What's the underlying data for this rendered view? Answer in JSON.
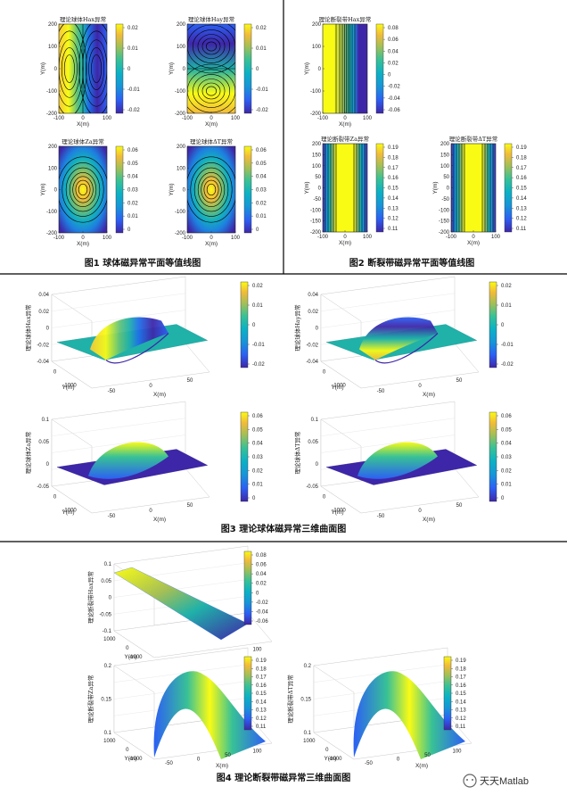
{
  "captions": {
    "fig1": "图1 球体磁异常平面等值线图",
    "fig2": "图2 断裂带磁异常平面等值线图",
    "fig3": "图3 理论球体磁异常三维曲面图",
    "fig4": "图4 理论断裂带磁异常三维曲面图"
  },
  "watermark": "天天Matlab",
  "colors": {
    "low": "#3e26a8",
    "mid": "#20b1a9",
    "high": "#f9fb15",
    "divider": "#000000"
  },
  "chart_data": [
    {
      "id": "f1a",
      "type": "heatmap",
      "title": "理论球体Hax异常",
      "xlabel": "X(m)",
      "ylabel": "Y(m)",
      "xlim": [
        -100,
        100
      ],
      "ylim": [
        -200,
        200
      ],
      "xticks": [
        "-100",
        "0",
        "100"
      ],
      "yticks": [
        "200",
        "100",
        "0",
        "-100",
        "-200"
      ],
      "colorbar_ticks": [
        "0.02",
        "0.01",
        "0",
        "-0.01",
        "-0.02"
      ],
      "clim": [
        -0.025,
        0.025
      ]
    },
    {
      "id": "f1b",
      "type": "heatmap",
      "title": "理论球体Hay异常",
      "xlabel": "X(m)",
      "ylabel": "Y(m)",
      "xlim": [
        -100,
        100
      ],
      "ylim": [
        -200,
        200
      ],
      "xticks": [
        "-100",
        "0",
        "100"
      ],
      "yticks": [
        "200",
        "100",
        "0",
        "-100",
        "-200"
      ],
      "colorbar_ticks": [
        "0.02",
        "0.01",
        "0",
        "-0.01",
        "-0.02"
      ],
      "clim": [
        -0.025,
        0.025
      ]
    },
    {
      "id": "f1c",
      "type": "heatmap",
      "title": "理论球体Za异常",
      "xlabel": "X(m)",
      "ylabel": "Y(m)",
      "xlim": [
        -100,
        100
      ],
      "ylim": [
        -200,
        200
      ],
      "xticks": [
        "-100",
        "0",
        "100"
      ],
      "yticks": [
        "200",
        "100",
        "0",
        "-100",
        "-200"
      ],
      "colorbar_ticks": [
        "0.06",
        "0.05",
        "0.04",
        "0.03",
        "0.02",
        "0.01",
        "0"
      ],
      "clim": [
        0,
        0.065
      ]
    },
    {
      "id": "f1d",
      "type": "heatmap",
      "title": "理论球体ΔT异常",
      "xlabel": "X(m)",
      "ylabel": "Y(m)",
      "xlim": [
        -100,
        100
      ],
      "ylim": [
        -200,
        200
      ],
      "xticks": [
        "-100",
        "0",
        "100"
      ],
      "yticks": [
        "200",
        "100",
        "0",
        "-100",
        "-200"
      ],
      "colorbar_ticks": [
        "0.06",
        "0.05",
        "0.04",
        "0.03",
        "0.02",
        "0.01",
        "0"
      ],
      "clim": [
        0,
        0.065
      ]
    },
    {
      "id": "f2a",
      "type": "heatmap",
      "title": "理论断裂带Hax异常",
      "xlabel": "X(m)",
      "ylabel": "Y(m)",
      "xlim": [
        -100,
        100
      ],
      "ylim": [
        -200,
        200
      ],
      "xticks": [
        "-100",
        "0",
        "100"
      ],
      "yticks": [
        "200",
        "100",
        "0",
        "-100",
        "-200"
      ],
      "colorbar_ticks": [
        "0.08",
        "0.06",
        "0.04",
        "0.02",
        "0",
        "-0.02",
        "-0.04",
        "-0.06"
      ],
      "clim": [
        -0.07,
        0.085
      ]
    },
    {
      "id": "f2b",
      "type": "heatmap",
      "title": "理论断裂带Za异常",
      "xlabel": "X(m)",
      "ylabel": "Y(m)",
      "xlim": [
        -100,
        100
      ],
      "ylim": [
        -200,
        200
      ],
      "xticks": [
        "-100",
        "0",
        "100"
      ],
      "yticks": [
        "200",
        "150",
        "100",
        "50",
        "0",
        "-50",
        "-100",
        "-150",
        "-200"
      ],
      "colorbar_ticks": [
        "0.19",
        "0.18",
        "0.17",
        "0.16",
        "0.15",
        "0.14",
        "0.13",
        "0.12",
        "0.11"
      ],
      "clim": [
        0.105,
        0.195
      ]
    },
    {
      "id": "f2c",
      "type": "heatmap",
      "title": "理论断裂带ΔT异常",
      "xlabel": "X(m)",
      "ylabel": "Y(m)",
      "xlim": [
        -100,
        100
      ],
      "ylim": [
        -200,
        200
      ],
      "xticks": [
        "-100",
        "0",
        "100"
      ],
      "yticks": [
        "200",
        "150",
        "100",
        "50",
        "0",
        "-50",
        "-100",
        "-150",
        "-200"
      ],
      "colorbar_ticks": [
        "0.19",
        "0.18",
        "0.17",
        "0.16",
        "0.15",
        "0.14",
        "0.13",
        "0.12",
        "0.11"
      ],
      "clim": [
        0.105,
        0.195
      ]
    },
    {
      "id": "f3a",
      "type": "area",
      "ztitle": "理论球体Hax异常",
      "xlabel": "X(m)",
      "ylabel": "Y(m)",
      "zticks": [
        "0.04",
        "0.02",
        "0",
        "-0.02",
        "-0.04"
      ],
      "xticks": [
        "-50",
        "0",
        "50"
      ],
      "yticks": [
        "0",
        "-1000"
      ],
      "colorbar_ticks": [
        "0.02",
        "0.01",
        "0",
        "-0.01",
        "-0.02"
      ]
    },
    {
      "id": "f3b",
      "type": "area",
      "ztitle": "理论球体Hay异常",
      "xlabel": "X(m)",
      "ylabel": "Y(m)",
      "zticks": [
        "0.04",
        "0.02",
        "0",
        "-0.02",
        "-0.04"
      ],
      "xticks": [
        "-50",
        "0",
        "50"
      ],
      "yticks": [
        "0",
        "-1000"
      ],
      "colorbar_ticks": [
        "0.02",
        "0.01",
        "0",
        "-0.01",
        "-0.02"
      ]
    },
    {
      "id": "f3c",
      "type": "area",
      "ztitle": "理论球体Za异常",
      "xlabel": "X(m)",
      "ylabel": "Y(m)",
      "zticks": [
        "0.1",
        "0.05",
        "0",
        "-0.05"
      ],
      "xticks": [
        "-50",
        "0",
        "50"
      ],
      "yticks": [
        "0",
        "-1000"
      ],
      "colorbar_ticks": [
        "0.06",
        "0.05",
        "0.04",
        "0.03",
        "0.02",
        "0.01",
        "0"
      ]
    },
    {
      "id": "f3d",
      "type": "area",
      "ztitle": "理论球体ΔT异常",
      "xlabel": "X(m)",
      "ylabel": "Y(m)",
      "zticks": [
        "0.1",
        "0.05",
        "0",
        "-0.05"
      ],
      "xticks": [
        "-50",
        "0",
        "50"
      ],
      "yticks": [
        "0",
        "-1000"
      ],
      "colorbar_ticks": [
        "0.06",
        "0.05",
        "0.04",
        "0.03",
        "0.02",
        "0.01",
        "0"
      ]
    },
    {
      "id": "f4a",
      "type": "area",
      "ztitle": "理论断裂带Hax异常",
      "xlabel": "X(m)",
      "ylabel": "Y(m)",
      "zticks": [
        "0.1",
        "0.05",
        "0",
        "-0.05",
        "-0.1"
      ],
      "xticks": [
        "-50",
        "0",
        "50",
        "100"
      ],
      "yticks": [
        "1000",
        "0",
        "-1000"
      ],
      "colorbar_ticks": [
        "0.08",
        "0.06",
        "0.04",
        "0.02",
        "0",
        "-0.02",
        "-0.04",
        "-0.06"
      ]
    },
    {
      "id": "f4b",
      "type": "area",
      "ztitle": "理论断裂带Za异常",
      "xlabel": "X(m)",
      "ylabel": "Y(m)",
      "zticks": [
        "0.2",
        "0.15",
        "0.1"
      ],
      "xticks": [
        "-50",
        "0",
        "50",
        "100"
      ],
      "yticks": [
        "1000",
        "0",
        "-1000"
      ],
      "colorbar_ticks": [
        "0.19",
        "0.18",
        "0.17",
        "0.16",
        "0.15",
        "0.14",
        "0.13",
        "0.12",
        "0.11"
      ]
    },
    {
      "id": "f4c",
      "type": "area",
      "ztitle": "理论断裂带ΔT异常",
      "xlabel": "X(m)",
      "ylabel": "Y(m)",
      "zticks": [
        "0.2",
        "0.15",
        "0.1"
      ],
      "xticks": [
        "-50",
        "0",
        "50",
        "100"
      ],
      "yticks": [
        "1000",
        "0",
        "-1000"
      ],
      "colorbar_ticks": [
        "0.19",
        "0.18",
        "0.17",
        "0.16",
        "0.15",
        "0.14",
        "0.13",
        "0.12",
        "0.11"
      ]
    }
  ]
}
